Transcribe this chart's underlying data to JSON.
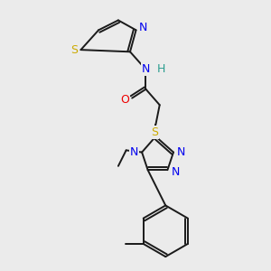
{
  "background_color": "#ebebeb",
  "bond_color": "#1a1a1a",
  "atom_colors": {
    "N": "#0000ee",
    "O": "#ee0000",
    "S": "#ccaa00",
    "NH_N": "#0000ee",
    "NH_H": "#2a9d8f",
    "C": "#1a1a1a"
  },
  "figsize": [
    3.0,
    3.0
  ],
  "dpi": 100
}
